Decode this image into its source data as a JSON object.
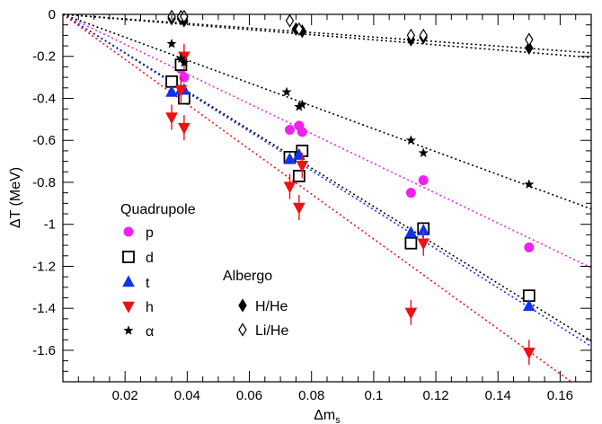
{
  "chart_data": {
    "type": "scatter",
    "xlabel": "Δm",
    "xlabel_sub": "s",
    "ylabel": "ΔT (MeV)",
    "xlim": [
      0,
      0.17
    ],
    "ylim": [
      -1.75,
      0
    ],
    "xticks": [
      0.02,
      0.04,
      0.06,
      0.08,
      0.1,
      0.12,
      0.14,
      0.16
    ],
    "xtick_labels": [
      "0.02",
      "0.04",
      "0.06",
      "0.08",
      "0.1",
      "0.12",
      "0.14",
      "0.16"
    ],
    "yticks": [
      0,
      -0.2,
      -0.4,
      -0.6,
      -0.8,
      -1,
      -1.2,
      -1.4,
      -1.6
    ],
    "ytick_labels": [
      "0",
      "-0.2",
      "-0.4",
      "-0.6",
      "-0.8",
      "-1",
      "-1.2",
      "-1.4",
      "-1.6"
    ],
    "grid": false,
    "legend_groups": [
      {
        "title": "Quadrupole",
        "placement": "left",
        "entries": [
          "p",
          "d",
          "t",
          "h",
          "α"
        ]
      },
      {
        "title": "Albergo",
        "placement": "center-bottom",
        "entries": [
          "H/He",
          "Li/He"
        ]
      }
    ],
    "series": [
      {
        "name": "p",
        "marker": "circle",
        "color": "#ee22ee",
        "filled": true,
        "points": [
          [
            0.035,
            -0.32
          ],
          [
            0.038,
            -0.26
          ],
          [
            0.039,
            -0.3
          ],
          [
            0.073,
            -0.55
          ],
          [
            0.076,
            -0.53
          ],
          [
            0.077,
            -0.56
          ],
          [
            0.112,
            -0.85
          ],
          [
            0.116,
            -0.79
          ],
          [
            0.15,
            -1.11
          ]
        ],
        "fit": {
          "slope": -7.1,
          "intercept": 0,
          "color": "#ee22ee"
        }
      },
      {
        "name": "d",
        "marker": "square",
        "color": "#000000",
        "filled": false,
        "points": [
          [
            0.035,
            -0.32
          ],
          [
            0.038,
            -0.24
          ],
          [
            0.039,
            -0.4
          ],
          [
            0.073,
            -0.68
          ],
          [
            0.076,
            -0.77
          ],
          [
            0.077,
            -0.65
          ],
          [
            0.112,
            -1.09
          ],
          [
            0.116,
            -1.02
          ],
          [
            0.15,
            -1.34
          ]
        ],
        "fit": {
          "slope": -9.15,
          "intercept": 0,
          "color": "#000000"
        }
      },
      {
        "name": "t",
        "marker": "triangle-up",
        "color": "#1133ee",
        "filled": true,
        "points": [
          [
            0.035,
            -0.37
          ],
          [
            0.038,
            -0.36
          ],
          [
            0.039,
            -0.36
          ],
          [
            0.073,
            -0.69
          ],
          [
            0.076,
            -0.67
          ],
          [
            0.112,
            -1.04
          ],
          [
            0.116,
            -1.03
          ],
          [
            0.15,
            -1.39
          ]
        ],
        "fit": {
          "slope": -9.3,
          "intercept": 0,
          "color": "#1133ee"
        }
      },
      {
        "name": "h",
        "marker": "triangle-down",
        "color": "#ee1111",
        "filled": true,
        "points": [
          [
            0.035,
            -0.49
          ],
          [
            0.038,
            -0.36
          ],
          [
            0.039,
            -0.54
          ],
          [
            0.039,
            -0.2
          ],
          [
            0.073,
            -0.82
          ],
          [
            0.076,
            -0.92
          ],
          [
            0.077,
            -0.72
          ],
          [
            0.112,
            -1.42
          ],
          [
            0.116,
            -1.09
          ],
          [
            0.15,
            -1.61
          ]
        ],
        "fit": {
          "slope": -10.7,
          "intercept": 0,
          "color": "#ee1111"
        }
      },
      {
        "name": "α",
        "marker": "star",
        "color": "#000000",
        "filled": true,
        "points": [
          [
            0.035,
            -0.14
          ],
          [
            0.038,
            -0.21
          ],
          [
            0.039,
            -0.23
          ],
          [
            0.072,
            -0.37
          ],
          [
            0.076,
            -0.44
          ],
          [
            0.077,
            -0.43
          ],
          [
            0.112,
            -0.6
          ],
          [
            0.116,
            -0.66
          ],
          [
            0.15,
            -0.81
          ]
        ],
        "fit": {
          "slope": -5.45,
          "intercept": 0,
          "color": "#000000"
        }
      },
      {
        "name": "H/He",
        "marker": "diamond",
        "color": "#000000",
        "filled": true,
        "points": [
          [
            0.035,
            -0.02
          ],
          [
            0.038,
            -0.02
          ],
          [
            0.039,
            -0.03
          ],
          [
            0.075,
            -0.07
          ],
          [
            0.077,
            -0.08
          ],
          [
            0.112,
            -0.12
          ],
          [
            0.116,
            -0.11
          ],
          [
            0.15,
            -0.16
          ]
        ],
        "fit": {
          "slope": -1.21,
          "intercept": 0,
          "color": "#000000"
        }
      },
      {
        "name": "Li/He",
        "marker": "diamond",
        "color": "#000000",
        "filled": false,
        "points": [
          [
            0.035,
            -0.01
          ],
          [
            0.038,
            -0.01
          ],
          [
            0.039,
            -0.01
          ],
          [
            0.073,
            -0.03
          ],
          [
            0.076,
            -0.07
          ],
          [
            0.112,
            -0.1
          ],
          [
            0.116,
            -0.1
          ],
          [
            0.15,
            -0.12
          ]
        ],
        "fit": {
          "slope": -1.08,
          "intercept": 0,
          "color": "#000000"
        }
      }
    ]
  }
}
